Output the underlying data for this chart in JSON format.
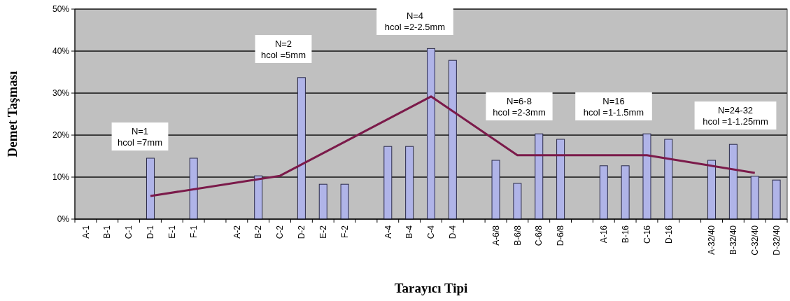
{
  "chart_data": {
    "type": "bar",
    "xlabel": "Tarayıcı Tipi",
    "ylabel": "Demet Taşması",
    "categories": [
      "A-1",
      "B-1",
      "C-1",
      "D-1",
      "E-1",
      "F-1",
      null,
      "A-2",
      "B-2",
      "C-2",
      "D-2",
      "E-2",
      "F-2",
      null,
      "A-4",
      "B-4",
      "C-4",
      "D-4",
      null,
      "A-6/8",
      "B-6/8",
      "C-6/8",
      "D-6/8",
      null,
      "A-16",
      "B-16",
      "C-16",
      "D-16",
      null,
      "A-32/40",
      "B-32/40",
      "C-32/40",
      "D-32/40"
    ],
    "series": [
      {
        "color": "#b0b4e8",
        "values": [
          null,
          null,
          null,
          14.5,
          null,
          14.5,
          null,
          null,
          10.3,
          null,
          33.7,
          8.3,
          8.3,
          null,
          17.3,
          17.3,
          40.6,
          37.8,
          null,
          14.0,
          8.5,
          20.3,
          19.0,
          null,
          12.7,
          12.7,
          20.3,
          19.0,
          null,
          14.0,
          17.8,
          10.2,
          9.3
        ]
      },
      {
        "type": "line",
        "color": "#7b1a4a",
        "values": [
          null,
          null,
          null,
          5.5,
          null,
          null,
          null,
          null,
          null,
          10.3,
          null,
          null,
          null,
          null,
          null,
          null,
          29.2,
          null,
          null,
          null,
          15.2,
          null,
          null,
          null,
          null,
          null,
          15.2,
          null,
          null,
          null,
          null,
          11.0,
          null
        ]
      }
    ],
    "ylim": [
      0,
      50
    ],
    "yticks": [
      {
        "value": 0,
        "label": "0%"
      },
      {
        "value": 10,
        "label": "10%"
      },
      {
        "value": 20,
        "label": "20%"
      },
      {
        "value": 30,
        "label": "30%"
      },
      {
        "value": 40,
        "label": "40%"
      },
      {
        "value": 50,
        "label": "50%"
      }
    ],
    "grid": "y",
    "annotations": [
      "N=1\nhcol =7mm",
      "N=2\nhcol =5mm",
      "N=4\nhcol =2-2.5mm",
      "N=6-8\nhcol =2-3mm",
      "N=16\nhcol =1-1.5mm",
      "N=24-32\nhcol =1-1.25mm"
    ]
  }
}
